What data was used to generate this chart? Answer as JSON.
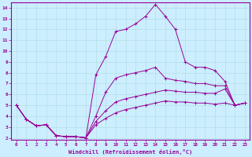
{
  "xlabel": "Windchill (Refroidissement éolien,°C)",
  "bg_color": "#cceeff",
  "line_color": "#990099",
  "xlim": [
    -0.5,
    23.5
  ],
  "ylim": [
    1.8,
    14.5
  ],
  "xticks": [
    0,
    1,
    2,
    3,
    4,
    5,
    6,
    7,
    8,
    9,
    10,
    11,
    12,
    13,
    14,
    15,
    16,
    17,
    18,
    19,
    20,
    21,
    22,
    23
  ],
  "yticks": [
    2,
    3,
    4,
    5,
    6,
    7,
    8,
    9,
    10,
    11,
    12,
    13,
    14
  ],
  "lines": [
    {
      "x": [
        0,
        1,
        2,
        3,
        4,
        5,
        6,
        7,
        8,
        9,
        10,
        11,
        12,
        13,
        14,
        15,
        16,
        17,
        18,
        19,
        20,
        21,
        22,
        23
      ],
      "y": [
        5.0,
        3.7,
        3.1,
        3.2,
        2.2,
        2.1,
        2.1,
        2.0,
        7.8,
        9.5,
        11.8,
        12.0,
        12.5,
        13.2,
        14.3,
        13.2,
        12.0,
        9.0,
        8.5,
        8.5,
        8.2,
        7.2,
        5.0,
        5.2
      ]
    },
    {
      "x": [
        0,
        1,
        2,
        3,
        4,
        5,
        6,
        7,
        8,
        9,
        10,
        11,
        12,
        13,
        14,
        15,
        16,
        17,
        18,
        19,
        20,
        21,
        22,
        23
      ],
      "y": [
        5.0,
        3.7,
        3.1,
        3.2,
        2.2,
        2.1,
        2.1,
        2.0,
        4.0,
        6.2,
        7.5,
        7.8,
        8.0,
        8.2,
        8.5,
        7.5,
        7.3,
        7.2,
        7.0,
        7.0,
        6.8,
        6.8,
        5.0,
        5.2
      ]
    },
    {
      "x": [
        0,
        1,
        2,
        3,
        4,
        5,
        6,
        7,
        8,
        9,
        10,
        11,
        12,
        13,
        14,
        15,
        16,
        17,
        18,
        19,
        20,
        21,
        22,
        23
      ],
      "y": [
        5.0,
        3.7,
        3.1,
        3.2,
        2.2,
        2.1,
        2.1,
        2.0,
        3.5,
        4.5,
        5.3,
        5.6,
        5.8,
        6.0,
        6.2,
        6.4,
        6.3,
        6.2,
        6.2,
        6.1,
        6.1,
        6.5,
        5.0,
        5.2
      ]
    },
    {
      "x": [
        0,
        1,
        2,
        3,
        4,
        5,
        6,
        7,
        8,
        9,
        10,
        11,
        12,
        13,
        14,
        15,
        16,
        17,
        18,
        19,
        20,
        21,
        22,
        23
      ],
      "y": [
        5.0,
        3.7,
        3.1,
        3.2,
        2.2,
        2.1,
        2.1,
        2.0,
        3.2,
        3.8,
        4.3,
        4.6,
        4.8,
        5.0,
        5.2,
        5.4,
        5.3,
        5.3,
        5.2,
        5.2,
        5.1,
        5.2,
        5.0,
        5.2
      ]
    }
  ]
}
